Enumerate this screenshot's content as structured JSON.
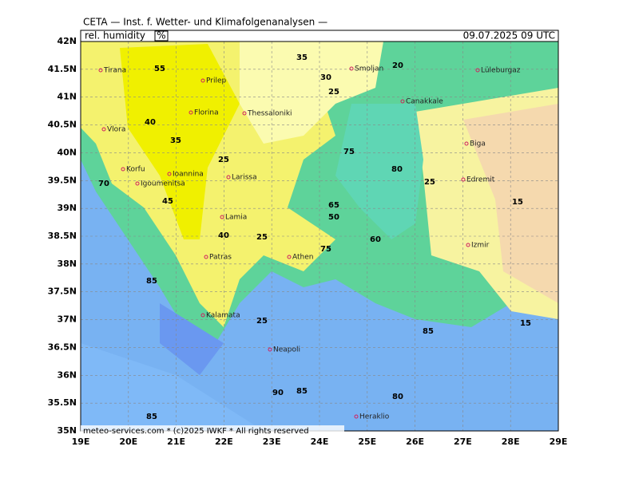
{
  "header": {
    "title": "CETA — Inst. f. Wetter- und Klimafolgenanalysen —",
    "variable": "rel. humidity",
    "unit": "%",
    "datetime": "09.07.2025 09 UTC"
  },
  "footer": "meteo-services.com * (c)2025 IWKF * All rights reserved",
  "lat_labels": [
    "42N",
    "41.5N",
    "41N",
    "40.5N",
    "40N",
    "39.5N",
    "39N",
    "38.5N",
    "38N",
    "37.5N",
    "37N",
    "36.5N",
    "36N",
    "35.5N",
    "35N"
  ],
  "lon_labels": [
    "19E",
    "20E",
    "21E",
    "22E",
    "23E",
    "24E",
    "25E",
    "26E",
    "27E",
    "28E",
    "29E"
  ],
  "cities": [
    "Tirana",
    "Prilep",
    "Smoljan",
    "Lüleburgaz",
    "Florina",
    "Thessaloniki",
    "Vlora",
    "Canakkale",
    "Biga",
    "Korfu",
    "Ioannina",
    "Igoumenitsa",
    "Larissa",
    "Edremit",
    "Lamia",
    "Izmir",
    "Patras",
    "Athen",
    "Kalamata",
    "Neapoli",
    "Heraklio"
  ],
  "contour_labels": [
    35,
    20,
    55,
    30,
    25,
    40,
    35,
    25,
    80,
    75,
    25,
    15,
    65,
    50,
    45,
    40,
    25,
    60,
    70,
    85,
    75,
    85,
    90,
    85,
    80,
    85,
    15,
    25
  ]
}
